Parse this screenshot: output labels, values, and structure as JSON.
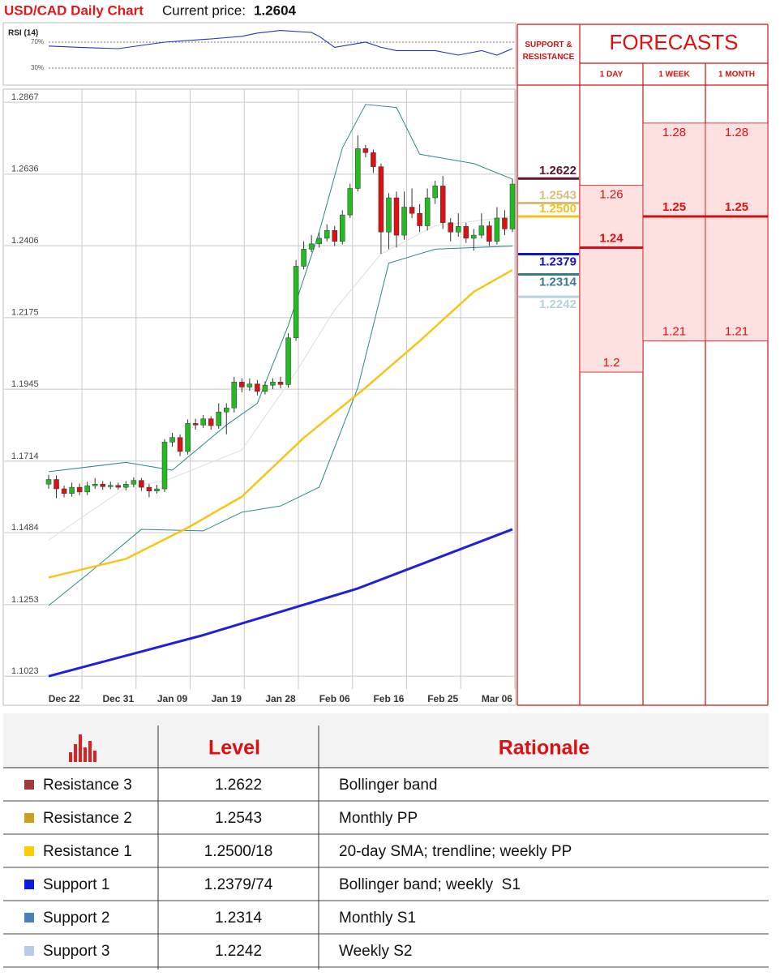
{
  "header": {
    "title": "USD/CAD Daily Chart",
    "price_label": "Current price:",
    "price": "1.2604"
  },
  "chart_data": [
    {
      "type": "line",
      "title": "RSI (14)",
      "color": "#2433c4",
      "x": [
        0,
        4,
        9,
        15,
        21,
        25,
        27,
        30,
        34,
        35,
        37,
        41,
        43,
        45,
        50,
        53,
        56,
        58,
        60
      ],
      "values": [
        64,
        62,
        60,
        70,
        75,
        79,
        84,
        88,
        85,
        79,
        62,
        70,
        62,
        57,
        57,
        50,
        57,
        50,
        60
      ],
      "xlim": [
        0,
        60
      ],
      "ylim": [
        10,
        100
      ],
      "yticks": [
        {
          "value": 70,
          "label": "70%"
        },
        {
          "value": 30,
          "label": "30%"
        }
      ]
    },
    {
      "type": "candlestick",
      "up_color": "#22bb22",
      "down_color": "#dd1111",
      "grid": true,
      "categories": [
        null,
        null,
        "Dec 22",
        null,
        null,
        null,
        null,
        null,
        null,
        "Dec 31",
        null,
        null,
        null,
        null,
        null,
        null,
        "Jan 09",
        null,
        null,
        null,
        null,
        null,
        null,
        "Jan 19",
        null,
        null,
        null,
        null,
        null,
        null,
        "Jan 28",
        null,
        null,
        null,
        null,
        null,
        null,
        "Feb 06",
        null,
        null,
        null,
        null,
        null,
        null,
        "Feb 16",
        null,
        null,
        null,
        null,
        null,
        null,
        "Feb 25",
        null,
        null,
        null,
        null,
        null,
        null,
        "Mar 06",
        null,
        null
      ],
      "open": [
        1.164,
        1.1655,
        1.1625,
        1.161,
        1.163,
        1.1615,
        1.1635,
        1.164,
        1.1632,
        1.1636,
        1.163,
        1.164,
        1.1652,
        1.163,
        1.1618,
        1.1625,
        1.1775,
        1.179,
        1.1745,
        1.1835,
        1.183,
        1.185,
        1.1828,
        1.1872,
        1.1885,
        1.1968,
        1.1952,
        1.1962,
        1.1938,
        1.1958,
        1.1968,
        1.196,
        1.211,
        1.234,
        1.2395,
        1.2412,
        1.243,
        1.2455,
        1.242,
        1.2505,
        1.259,
        1.2718,
        1.2705,
        1.266,
        1.245,
        1.256,
        1.244,
        1.253,
        1.251,
        1.247,
        1.256,
        1.2598,
        1.248,
        1.245,
        1.2468,
        1.243,
        1.244,
        1.247,
        1.242,
        1.2495,
        1.246
      ],
      "high": [
        1.167,
        1.1668,
        1.1635,
        1.1645,
        1.1642,
        1.1648,
        1.166,
        1.165,
        1.1648,
        1.1645,
        1.165,
        1.1662,
        1.166,
        1.164,
        1.1638,
        1.1785,
        1.1805,
        1.18,
        1.1848,
        1.185,
        1.1862,
        1.1858,
        1.19,
        1.19,
        1.1985,
        1.198,
        1.198,
        1.1975,
        1.197,
        1.198,
        1.1985,
        1.2125,
        1.236,
        1.242,
        1.244,
        1.245,
        1.2475,
        1.247,
        1.252,
        1.2605,
        1.276,
        1.273,
        1.2715,
        1.267,
        1.2575,
        1.258,
        1.258,
        1.259,
        1.254,
        1.259,
        1.2615,
        1.263,
        1.2495,
        1.251,
        1.248,
        1.246,
        1.251,
        1.2485,
        1.253,
        1.252,
        1.262
      ],
      "low": [
        1.1625,
        1.1595,
        1.1598,
        1.16,
        1.1605,
        1.1605,
        1.1625,
        1.1622,
        1.1624,
        1.1622,
        1.162,
        1.163,
        1.1618,
        1.1598,
        1.161,
        1.1615,
        1.176,
        1.173,
        1.1735,
        1.1815,
        1.182,
        1.1815,
        1.1818,
        1.18,
        1.187,
        1.1935,
        1.194,
        1.1925,
        1.1928,
        1.1945,
        1.1948,
        1.195,
        1.21,
        1.233,
        1.2385,
        1.24,
        1.242,
        1.2405,
        1.241,
        1.2495,
        1.258,
        1.269,
        1.264,
        1.238,
        1.2395,
        1.24,
        1.2425,
        1.2495,
        1.245,
        1.2455,
        1.254,
        1.246,
        1.242,
        1.2435,
        1.2415,
        1.239,
        1.243,
        1.2405,
        1.241,
        1.244,
        1.245
      ],
      "close": [
        1.1655,
        1.1625,
        1.161,
        1.163,
        1.1615,
        1.1635,
        1.164,
        1.1632,
        1.1636,
        1.163,
        1.164,
        1.1652,
        1.163,
        1.1618,
        1.1625,
        1.1775,
        1.179,
        1.1745,
        1.1835,
        1.183,
        1.185,
        1.1828,
        1.1872,
        1.1885,
        1.1968,
        1.1952,
        1.1962,
        1.1938,
        1.1958,
        1.1968,
        1.196,
        1.211,
        1.234,
        1.2395,
        1.2412,
        1.243,
        1.2455,
        1.242,
        1.2505,
        1.259,
        1.2718,
        1.2705,
        1.266,
        1.245,
        1.256,
        1.244,
        1.253,
        1.251,
        1.247,
        1.256,
        1.2598,
        1.248,
        1.245,
        1.2468,
        1.243,
        1.244,
        1.247,
        1.242,
        1.2495,
        1.246,
        1.2604
      ],
      "overlays": [
        {
          "color": "#dddddd",
          "x": [
            0,
            10,
            15,
            25,
            32,
            37,
            43,
            50,
            60
          ],
          "values": [
            1.146,
            1.163,
            1.165,
            1.175,
            1.2,
            1.22,
            1.238,
            1.247,
            1.25
          ]
        },
        {
          "color": "#2a8a8a",
          "x": [
            0,
            10,
            16,
            23,
            27,
            31,
            35,
            38,
            41,
            45,
            48,
            55,
            60
          ],
          "values": [
            1.168,
            1.171,
            1.1685,
            1.183,
            1.19,
            1.215,
            1.245,
            1.272,
            1.286,
            1.285,
            1.27,
            1.267,
            1.262
          ]
        },
        {
          "color": "#2a8a8a",
          "x": [
            0,
            5,
            12,
            20,
            25,
            30,
            35,
            40,
            44,
            50,
            60
          ],
          "values": [
            1.125,
            1.135,
            1.1495,
            1.149,
            1.155,
            1.157,
            1.163,
            1.195,
            1.235,
            1.2395,
            1.2405
          ]
        },
        {
          "color": "#f5c518",
          "x": [
            0,
            10,
            18,
            25,
            33,
            41,
            48,
            55,
            60
          ],
          "values": [
            1.134,
            1.14,
            1.15,
            1.16,
            1.1789,
            1.195,
            1.21,
            1.2258,
            1.2328
          ]
        },
        {
          "color": "#2020d8",
          "x": [
            0,
            20,
            40,
            60
          ],
          "values": [
            1.1023,
            1.1155,
            1.1305,
            1.1495
          ]
        }
      ],
      "ylim": [
        1.0987,
        1.2909
      ],
      "yticks": [
        1.2867,
        1.2636,
        1.2406,
        1.2175,
        1.1945,
        1.1714,
        1.1484,
        1.1253,
        1.1023
      ]
    }
  ],
  "forecasts": {
    "header": "SUPPORT & RESISTANCE",
    "title": "FORECASTS",
    "levels": [
      {
        "value": 1.2622,
        "label": "1.2622",
        "color": "#5a1530"
      },
      {
        "value": 1.2543,
        "label": "1.2543",
        "color": "#d8bc78"
      },
      {
        "value": 1.25,
        "label": "1.2500",
        "color": "#f2c21a"
      },
      {
        "value": 1.2379,
        "label": "1.2379",
        "color": "#1414c8"
      },
      {
        "value": 1.2314,
        "label": "1.2314",
        "color": "#3a7896"
      },
      {
        "value": 1.2242,
        "label": "1.2242",
        "color": "#b4d2da"
      }
    ],
    "columns": [
      {
        "label": "1 DAY",
        "high": 1.26,
        "mid": 1.24,
        "low": 1.2
      },
      {
        "label": "1 WEEK",
        "high": 1.28,
        "mid": 1.25,
        "low": 1.21
      },
      {
        "label": "1 MONTH",
        "high": 1.28,
        "mid": 1.25,
        "low": 1.21
      }
    ]
  },
  "table": {
    "headers": [
      "Level",
      "Rationale"
    ],
    "rows": [
      {
        "name": "Resistance 3",
        "level": "1.2622",
        "rationale": "Bollinger band",
        "color": "#a33a3a"
      },
      {
        "name": "Resistance 2",
        "level": "1.2543",
        "rationale": "Monthly PP",
        "color": "#c9a020"
      },
      {
        "name": "Resistance 1",
        "level": "1.2500/18",
        "rationale": "20-day SMA; trendline; weekly PP",
        "color": "#ffcc00"
      },
      {
        "name": "Support 1",
        "level": "1.2379/74",
        "rationale": "Bollinger band; weekly  S1",
        "color": "#0a1ae0"
      },
      {
        "name": "Support 2",
        "level": "1.2314",
        "rationale": "Monthly S1",
        "color": "#4a80c0"
      },
      {
        "name": "Support 3",
        "level": "1.2242",
        "rationale": "Weekly S2",
        "color": "#b8cce8"
      }
    ]
  }
}
